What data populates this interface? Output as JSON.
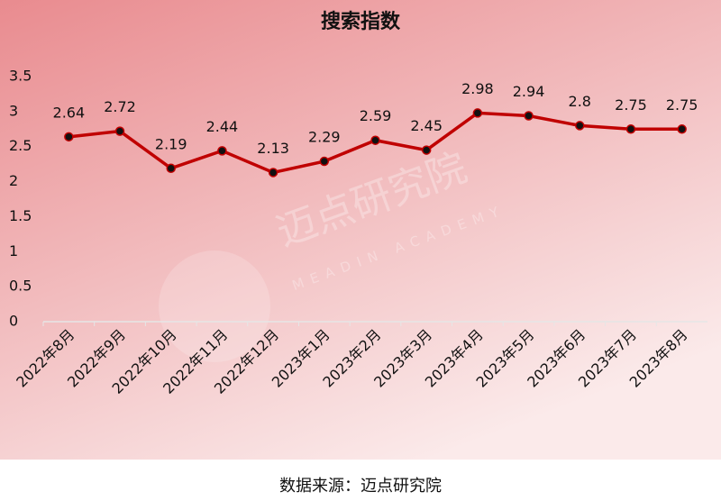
{
  "chart_data": {
    "type": "line",
    "title": "搜索指数",
    "categories": [
      "2022年8月",
      "2022年9月",
      "2022年10月",
      "2022年11月",
      "2022年12月",
      "2023年1月",
      "2023年2月",
      "2023年3月",
      "2023年4月",
      "2023年5月",
      "2023年6月",
      "2023年7月",
      "2023年8月"
    ],
    "values": [
      2.64,
      2.72,
      2.19,
      2.44,
      2.13,
      2.29,
      2.59,
      2.45,
      2.98,
      2.94,
      2.8,
      2.75,
      2.75
    ],
    "color": "#c00000",
    "ylim": [
      0,
      3.5
    ],
    "yticks": [
      0,
      0.5,
      1,
      1.5,
      2,
      2.5,
      3,
      3.5
    ],
    "grid": false,
    "watermark": "迈点研究院",
    "watermark_sub": "MEADIN ACADEMY",
    "source": "数据来源：迈点研究院"
  }
}
